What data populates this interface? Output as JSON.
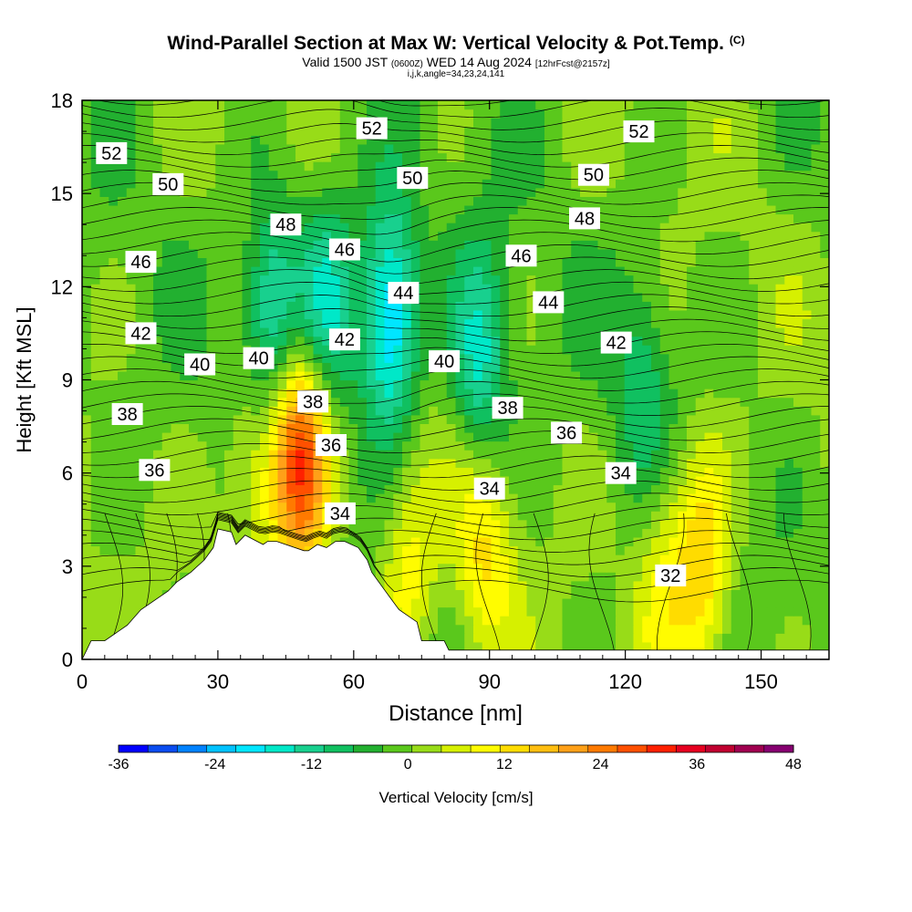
{
  "title": {
    "main": "Wind-Parallel Section at Max W: Vertical Velocity & Pot.Temp.",
    "copyright": "(C)",
    "valid_prefix": "Valid 1500 JST",
    "valid_utc": "(0600Z)",
    "valid_date": "WED 14 Aug 2024",
    "forecast": "[12hrFcst@2157z]",
    "indices": "i,j,k,angle=34,23,24,141"
  },
  "chart_data": {
    "type": "heatmap",
    "xlabel": "Distance [nm]",
    "ylabel": "Height [Kft MSL]",
    "xlim": [
      0,
      165
    ],
    "ylim": [
      0,
      18
    ],
    "x_ticks": [
      0,
      30,
      60,
      90,
      120,
      150
    ],
    "y_ticks": [
      0,
      3,
      6,
      9,
      12,
      15,
      18
    ],
    "colorbar": {
      "label": "Vertical Velocity [cm/s]",
      "ticks": [
        -36,
        -24,
        -12,
        0,
        12,
        24,
        36,
        48
      ],
      "range": [
        -36,
        48
      ],
      "step": 4,
      "colors": [
        "#0000ff",
        "#0a4cf0",
        "#0082ff",
        "#00c2ff",
        "#00e6ff",
        "#00e8c8",
        "#18d08e",
        "#10c060",
        "#22b030",
        "#5ac81c",
        "#98dc18",
        "#d6f000",
        "#fffc00",
        "#ffdc00",
        "#ffbe10",
        "#ffa018",
        "#ff7a00",
        "#ff5000",
        "#ff2000",
        "#e60020",
        "#c00030",
        "#a00050",
        "#860070"
      ]
    },
    "terrain_profile": {
      "description_note": "",
      "x": [
        0,
        1,
        2,
        5,
        10,
        13,
        16,
        19,
        21,
        24,
        27,
        29,
        30,
        33,
        34,
        36,
        40,
        41,
        43,
        49,
        50,
        52,
        54,
        56,
        58,
        61,
        63,
        64,
        66,
        68,
        70,
        74,
        75,
        80,
        81,
        165
      ],
      "y": [
        0,
        0.3,
        0.6,
        0.6,
        1.1,
        1.6,
        1.9,
        2.2,
        2.5,
        2.8,
        3.2,
        3.6,
        4.2,
        4.1,
        3.7,
        4.0,
        3.7,
        3.8,
        3.8,
        3.5,
        3.5,
        3.7,
        3.6,
        3.8,
        3.8,
        3.6,
        3.2,
        2.8,
        2.4,
        2.0,
        1.6,
        1.2,
        0.6,
        0.6,
        0.3,
        0.3
      ]
    },
    "velocity_features": [
      {
        "x": 48,
        "y": 6.5,
        "peak": 38
      },
      {
        "x": 38,
        "y": 6.0,
        "peak": 14
      },
      {
        "x": 89,
        "y": 3.5,
        "peak": 16
      },
      {
        "x": 137,
        "y": 3.0,
        "peak": 20
      },
      {
        "x": 72,
        "y": 3.0,
        "peak": 14
      },
      {
        "x": 128,
        "y": 3.0,
        "peak": 12
      },
      {
        "x": 68,
        "y": 11.0,
        "peak": -24
      },
      {
        "x": 42,
        "y": 11.0,
        "peak": -16
      },
      {
        "x": 54,
        "y": 11.5,
        "peak": -14
      },
      {
        "x": 88,
        "y": 9.5,
        "peak": -14
      },
      {
        "x": 124,
        "y": 9.0,
        "peak": -6
      }
    ],
    "theta_contours": {
      "units": "K",
      "labels": [
        {
          "text": "52",
          "x": 6.5,
          "y": 16.3
        },
        {
          "text": "52",
          "x": 64,
          "y": 17.1
        },
        {
          "text": "52",
          "x": 123,
          "y": 17.0
        },
        {
          "text": "50",
          "x": 19,
          "y": 15.3
        },
        {
          "text": "50",
          "x": 73,
          "y": 15.5
        },
        {
          "text": "50",
          "x": 113,
          "y": 15.6
        },
        {
          "text": "48",
          "x": 45,
          "y": 14.0
        },
        {
          "text": "48",
          "x": 111,
          "y": 14.2
        },
        {
          "text": "46",
          "x": 13,
          "y": 12.8
        },
        {
          "text": "46",
          "x": 58,
          "y": 13.2
        },
        {
          "text": "46",
          "x": 97,
          "y": 13.0
        },
        {
          "text": "44",
          "x": 71,
          "y": 11.8
        },
        {
          "text": "44",
          "x": 103,
          "y": 11.5
        },
        {
          "text": "42",
          "x": 13,
          "y": 10.5
        },
        {
          "text": "42",
          "x": 58,
          "y": 10.3
        },
        {
          "text": "42",
          "x": 118,
          "y": 10.2
        },
        {
          "text": "40",
          "x": 26,
          "y": 9.5
        },
        {
          "text": "40",
          "x": 39,
          "y": 9.7
        },
        {
          "text": "40",
          "x": 80,
          "y": 9.6
        },
        {
          "text": "38",
          "x": 10,
          "y": 7.9
        },
        {
          "text": "38",
          "x": 51,
          "y": 8.3
        },
        {
          "text": "38",
          "x": 94,
          "y": 8.1
        },
        {
          "text": "36",
          "x": 16,
          "y": 6.1
        },
        {
          "text": "36",
          "x": 55,
          "y": 6.9
        },
        {
          "text": "36",
          "x": 107,
          "y": 7.3
        },
        {
          "text": "34",
          "x": 57,
          "y": 4.7
        },
        {
          "text": "34",
          "x": 90,
          "y": 5.5
        },
        {
          "text": "34",
          "x": 119,
          "y": 6.0
        },
        {
          "text": "32",
          "x": 130,
          "y": 2.7
        }
      ]
    }
  }
}
